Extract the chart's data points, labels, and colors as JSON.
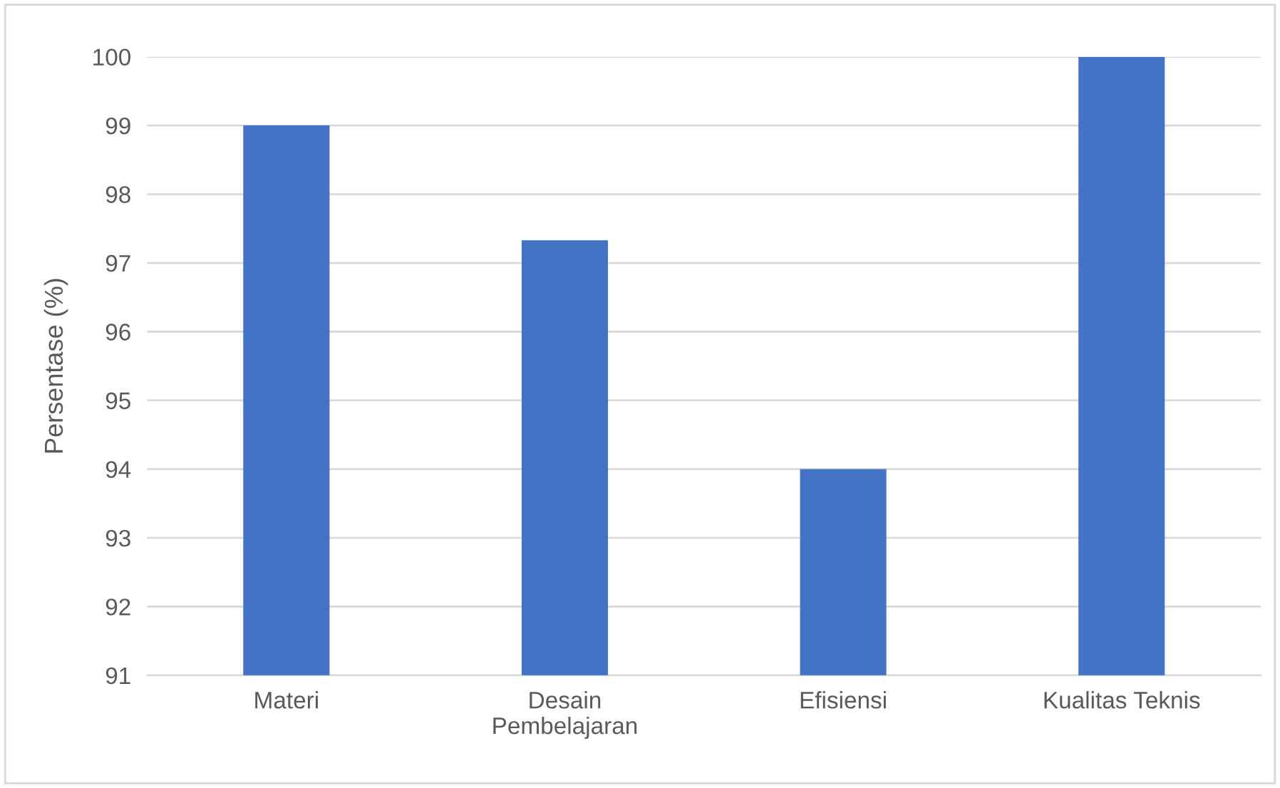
{
  "chart_data": {
    "type": "bar",
    "ylabel": "Persentase (%)",
    "categories": [
      "Materi",
      "Desain\nPembelajaran",
      "Efisiensi",
      "Kualitas Teknis"
    ],
    "values": [
      99,
      97.33,
      94,
      100
    ],
    "color": "#4472c4",
    "ylim": [
      91,
      100
    ],
    "yticks": [
      91,
      92,
      93,
      94,
      95,
      96,
      97,
      98,
      99,
      100
    ],
    "grid": "y"
  }
}
